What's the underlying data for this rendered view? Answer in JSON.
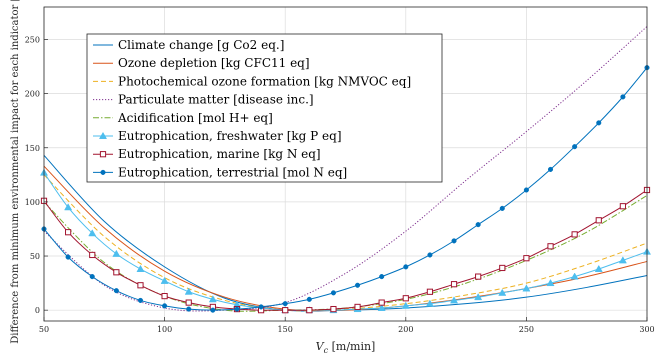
{
  "chart_data": {
    "type": "line",
    "xlabel": "V_c [m/min]",
    "ylabel": "Difference from minimum environmental impact for each indicator [%]",
    "xlim": [
      50,
      300
    ],
    "ylim": [
      -10,
      280
    ],
    "xticks": [
      50,
      100,
      150,
      200,
      250,
      300
    ],
    "yticks": [
      0,
      50,
      100,
      150,
      200,
      250
    ],
    "grid": true,
    "legend_position": "top-left",
    "series": [
      {
        "name": "Climate change [g Co2 eq.]",
        "color": "#0072BD",
        "dash": "solid",
        "marker": "none",
        "x": [
          50,
          75,
          100,
          125,
          150,
          175,
          200,
          225,
          250,
          275,
          300
        ],
        "y": [
          143,
          82,
          40,
          11,
          0,
          0,
          2,
          6,
          12,
          21,
          32
        ]
      },
      {
        "name": "Ozone depletion [kg CFC11 eq]",
        "color": "#D95319",
        "dash": "solid",
        "marker": "none",
        "x": [
          50,
          75,
          100,
          125,
          150,
          175,
          200,
          225,
          250,
          275,
          300
        ],
        "y": [
          133,
          76,
          36,
          12,
          1,
          0,
          4,
          11,
          20,
          31,
          45
        ]
      },
      {
        "name": "Photochemical ozone formation [kg NMVOC eq]",
        "color": "#EDB120",
        "dash": "dashed",
        "marker": "none",
        "x": [
          50,
          75,
          100,
          125,
          150,
          175,
          200,
          225,
          250,
          275,
          300
        ],
        "y": [
          125,
          68,
          30,
          9,
          0,
          1,
          6,
          14,
          25,
          42,
          62
        ]
      },
      {
        "name": "Particulate matter [disease inc.]",
        "color": "#7E2F8E",
        "dash": "dotted",
        "marker": "none",
        "x": [
          50,
          75,
          100,
          125,
          150,
          175,
          200,
          225,
          250,
          275,
          300
        ],
        "y": [
          73,
          23,
          2,
          0,
          7,
          34,
          73,
          120,
          165,
          212,
          262
        ]
      },
      {
        "name": "Acidification [mol H+ eq]",
        "color": "#77AC30",
        "dash": "dashdot",
        "marker": "none",
        "x": [
          50,
          75,
          100,
          125,
          150,
          175,
          200,
          225,
          250,
          275,
          300
        ],
        "y": [
          100,
          44,
          13,
          0,
          0,
          2,
          10,
          25,
          46,
          72,
          106
        ]
      },
      {
        "name": "Eutrophication, freshwater [kg P eq]",
        "color": "#4DBEEE",
        "dash": "solid",
        "marker": "triangle",
        "x": [
          50,
          60,
          70,
          80,
          90,
          100,
          110,
          120,
          130,
          140,
          150,
          160,
          170,
          180,
          190,
          200,
          210,
          220,
          230,
          240,
          250,
          260,
          270,
          280,
          290,
          300
        ],
        "y": [
          127,
          95,
          71,
          52,
          38,
          27,
          17,
          10,
          5,
          2,
          0,
          0,
          0,
          1,
          2,
          4,
          6,
          9,
          12,
          16,
          20,
          25,
          31,
          38,
          46,
          54
        ]
      },
      {
        "name": "Eutrophication, marine [kg N eq]",
        "color": "#A2142F",
        "dash": "solid",
        "marker": "square",
        "x": [
          50,
          60,
          70,
          80,
          90,
          100,
          110,
          120,
          130,
          140,
          150,
          160,
          170,
          180,
          190,
          200,
          210,
          220,
          230,
          240,
          250,
          260,
          270,
          280,
          290,
          300
        ],
        "y": [
          101,
          72,
          51,
          35,
          23,
          13,
          7,
          3,
          1,
          0,
          0,
          0,
          1,
          3,
          7,
          11,
          17,
          24,
          31,
          39,
          48,
          59,
          70,
          83,
          96,
          111
        ]
      },
      {
        "name": "Eutrophication, terrestrial [mol N eq]",
        "color": "#0072BD",
        "dash": "solid",
        "marker": "circle",
        "x": [
          50,
          60,
          70,
          80,
          90,
          100,
          110,
          120,
          130,
          140,
          150,
          160,
          170,
          180,
          190,
          200,
          210,
          220,
          230,
          240,
          250,
          260,
          270,
          280,
          290,
          300
        ],
        "y": [
          75,
          49,
          31,
          18,
          9,
          4,
          1,
          0,
          1,
          3,
          6,
          10,
          16,
          23,
          31,
          40,
          51,
          64,
          79,
          94,
          111,
          130,
          151,
          173,
          197,
          224
        ]
      }
    ]
  }
}
